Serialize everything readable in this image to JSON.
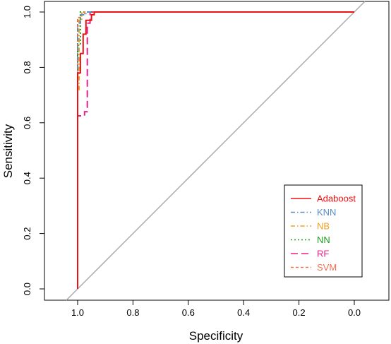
{
  "chart_data": {
    "type": "line",
    "xlabel": "Specificity",
    "ylabel": "Sensitivity",
    "x_reversed": true,
    "xlim": [
      1.0,
      0.0
    ],
    "ylim": [
      0.0,
      1.0
    ],
    "x_ticks": [
      {
        "value": 1.0,
        "label": "1.0"
      },
      {
        "value": 0.8,
        "label": "0.8"
      },
      {
        "value": 0.6,
        "label": "0.6"
      },
      {
        "value": 0.4,
        "label": "0.4"
      },
      {
        "value": 0.2,
        "label": "0.2"
      },
      {
        "value": 0.0,
        "label": "0.0"
      }
    ],
    "y_ticks": [
      {
        "value": 0.0,
        "label": "0.0"
      },
      {
        "value": 0.2,
        "label": "0.2"
      },
      {
        "value": 0.4,
        "label": "0.4"
      },
      {
        "value": 0.6,
        "label": "0.6"
      },
      {
        "value": 0.8,
        "label": "0.8"
      },
      {
        "value": 1.0,
        "label": "1.0"
      }
    ],
    "reference_line": {
      "from": [
        1.0,
        0.0
      ],
      "to": [
        0.0,
        1.0
      ],
      "color": "#aaaaaa"
    },
    "legend_position": "bottom-right",
    "grid": false,
    "series": [
      {
        "name": "Adaboost",
        "color": "#ee1111",
        "dash": "solid",
        "x": [
          1.0,
          1.0,
          0.99,
          0.99,
          0.98,
          0.98,
          0.97,
          0.97,
          0.95,
          0.95,
          0.94,
          0.94,
          0.0
        ],
        "y": [
          0.0,
          0.78,
          0.78,
          0.85,
          0.85,
          0.92,
          0.92,
          0.97,
          0.97,
          0.99,
          0.99,
          1.0,
          1.0
        ]
      },
      {
        "name": "KNN",
        "color": "#5a8fbf",
        "dash": "dashdot",
        "x": [
          1.0,
          1.0,
          0.99,
          0.99,
          0.97,
          0.97,
          0.0
        ],
        "y": [
          0.0,
          0.96,
          0.96,
          0.99,
          0.99,
          1.0,
          1.0
        ]
      },
      {
        "name": "NB",
        "color": "#f0a020",
        "dash": "dashdot",
        "x": [
          1.0,
          1.0,
          0.995,
          0.995,
          0.985,
          0.985,
          0.0
        ],
        "y": [
          0.0,
          0.72,
          0.72,
          0.97,
          0.97,
          1.0,
          1.0
        ]
      },
      {
        "name": "NN",
        "color": "#1a9a1a",
        "dash": "dotted",
        "x": [
          1.0,
          1.0,
          0.99,
          0.99,
          0.0
        ],
        "y": [
          0.0,
          0.88,
          0.88,
          1.0,
          1.0
        ]
      },
      {
        "name": "RF",
        "color": "#e8208a",
        "dash": "dashed",
        "x": [
          1.0,
          1.0,
          0.975,
          0.975,
          0.965,
          0.965,
          0.955,
          0.955,
          0.0
        ],
        "y": [
          0.0,
          0.625,
          0.625,
          0.64,
          0.64,
          0.96,
          0.96,
          1.0,
          1.0
        ]
      },
      {
        "name": "SVM",
        "color": "#f07050",
        "dash": "shortdash",
        "x": [
          1.0,
          1.0,
          0.985,
          0.985,
          0.975,
          0.975,
          0.0
        ],
        "y": [
          0.0,
          0.98,
          0.98,
          0.99,
          0.99,
          1.0,
          1.0
        ]
      }
    ]
  }
}
